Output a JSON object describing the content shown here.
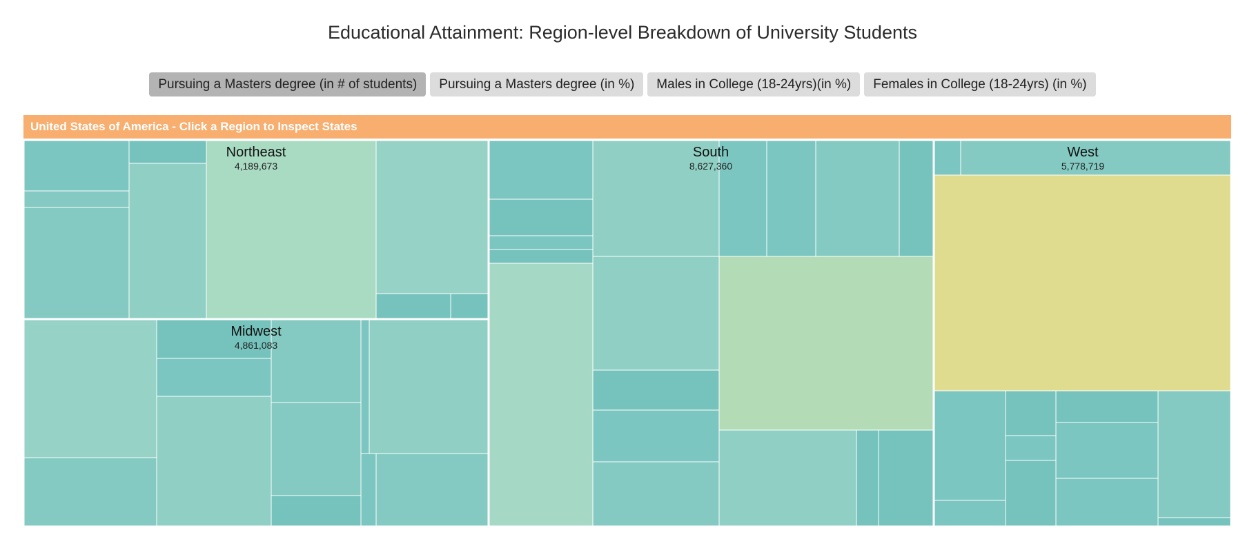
{
  "title": "Educational Attainment: Region-level Breakdown of University Students",
  "buttons": {
    "masters_count": "Pursuing a Masters degree (in # of students)",
    "masters_pct": "Pursuing a Masters degree (in %)",
    "males_college": "Males in College (18-24yrs)(in %)",
    "females_college": "Females in College (18-24yrs) (in %)"
  },
  "active_button": "masters_count",
  "breadcrumb": "United States of America - Click a Region to Inspect States",
  "colors": {
    "breadcrumb_bg": "#f7ae6f",
    "button_bg": "#dcdcdc",
    "button_active_bg": "#b3b3b3",
    "color_scale_low": "#76c3bd",
    "color_scale_mid": "#b3dcb6",
    "color_scale_high": "#e0dc8f"
  },
  "chart_data": {
    "type": "treemap",
    "title": "Educational Attainment: Region-level Breakdown of University Students",
    "regions": [
      {
        "name": "Northeast",
        "value_label": "4,189,673",
        "value": 4189673
      },
      {
        "name": "Midwest",
        "value_label": "4,861,083",
        "value": 4861083
      },
      {
        "name": "South",
        "value_label": "8,627,360",
        "value": 8627360
      },
      {
        "name": "West",
        "value_label": "5,778,719",
        "value": 5778719
      }
    ]
  }
}
